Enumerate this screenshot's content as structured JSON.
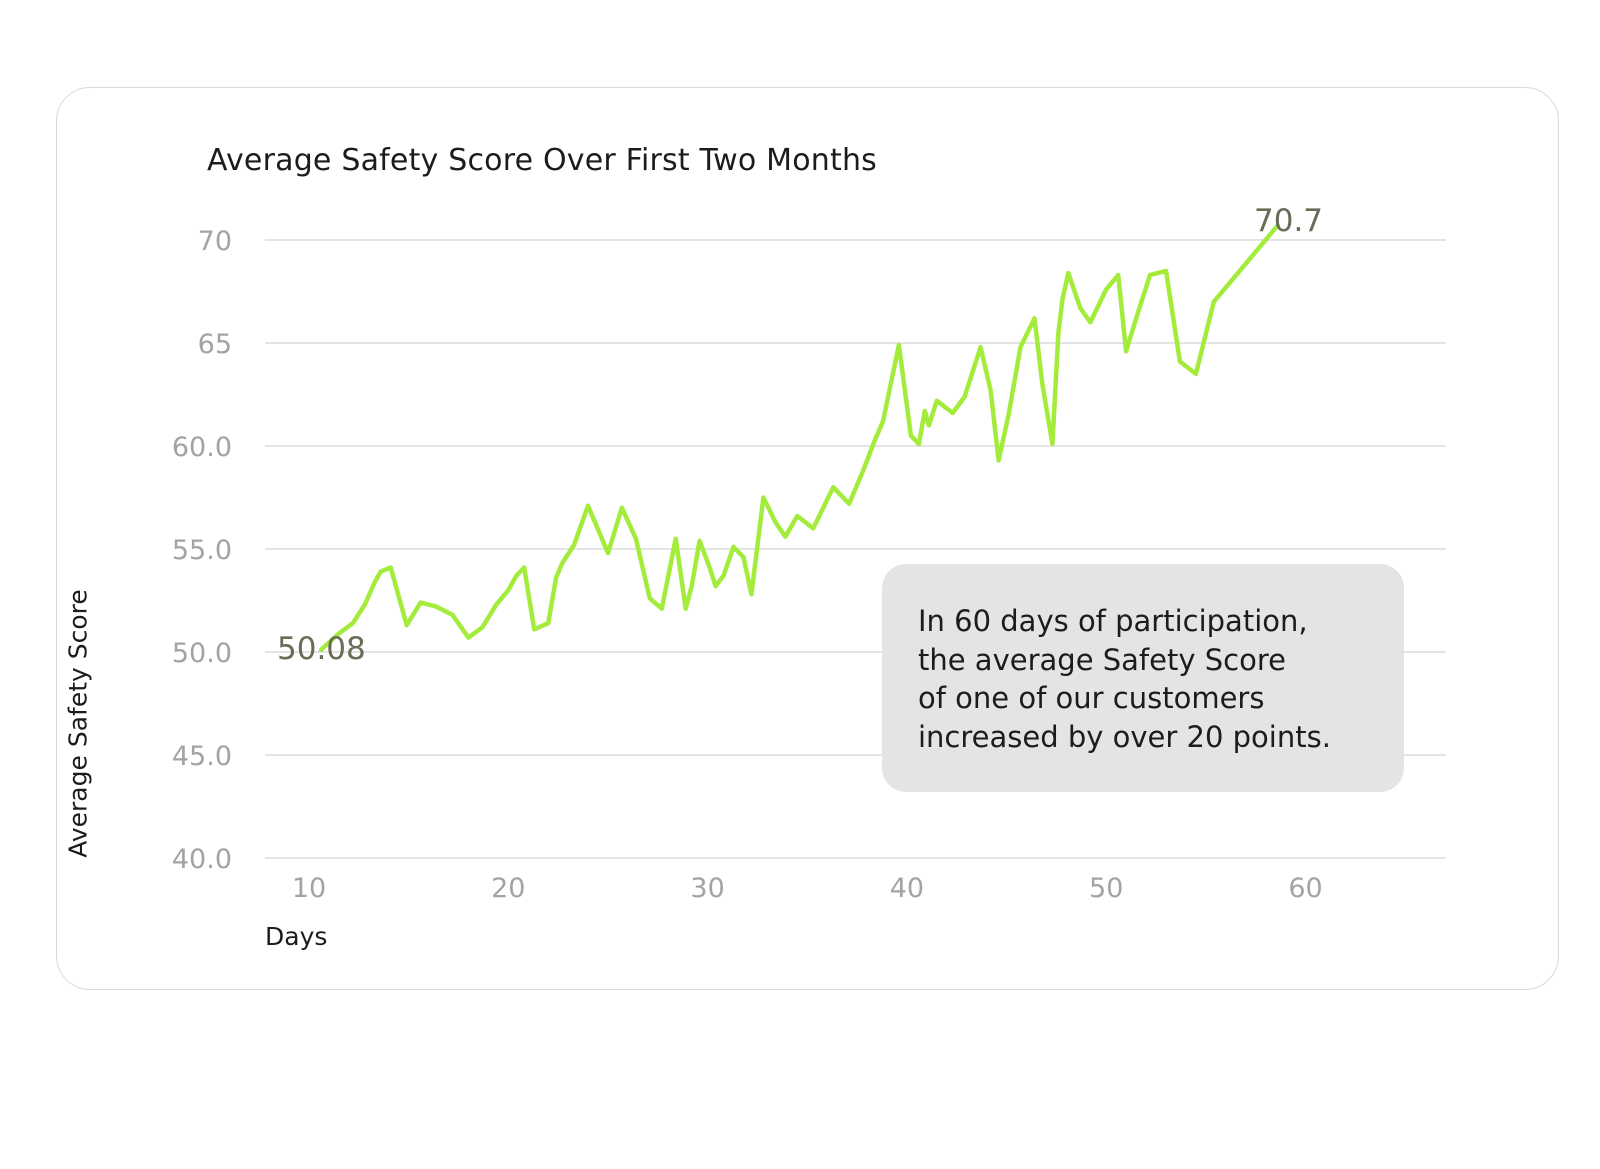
{
  "chart_data": {
    "type": "line",
    "title": "Average Safety Score Over First Two Months",
    "xlabel": "Days",
    "ylabel": "Average Safety Score",
    "xlim": [
      8,
      65
    ],
    "ylim": [
      40,
      70
    ],
    "grid": "horizontal",
    "x_ticks": [
      10,
      20,
      30,
      40,
      50,
      60
    ],
    "x_tick_labels": [
      "10",
      "20",
      "30",
      "40",
      "50",
      "60"
    ],
    "y_ticks": [
      40,
      45,
      50,
      55,
      60,
      65,
      70
    ],
    "y_tick_labels": [
      "40.0",
      "45.0",
      "50.0",
      "55.0",
      "60.0",
      "65",
      "70"
    ],
    "line_color": "#a3ec3b",
    "series": [
      {
        "x": [
          10.6,
          11.5,
          12.2,
          12.8,
          13.3,
          13.6,
          14.1,
          14.9,
          15.6,
          16.4,
          17.2,
          18.0,
          18.7,
          19.4,
          20.0,
          20.4,
          20.8,
          21.3,
          22.0,
          22.4,
          22.7,
          23.3,
          24.0,
          25.0,
          25.7,
          26.4,
          27.1,
          27.7,
          28.4,
          28.9,
          29.2,
          29.6,
          30.1,
          30.4,
          30.8,
          31.3,
          31.8,
          32.2,
          32.8,
          33.4,
          33.9,
          34.5,
          35.3,
          36.3,
          37.1,
          37.8,
          38.4,
          38.8,
          39.6,
          40.2,
          40.6,
          40.9,
          41.1,
          41.5,
          42.3,
          42.9,
          43.7,
          44.2,
          44.6,
          45.1,
          45.7,
          46.4,
          46.8,
          47.3,
          47.6,
          47.8,
          48.1,
          48.7,
          49.2,
          50.0,
          50.6,
          51.0,
          51.6,
          52.2,
          53.0,
          53.7,
          54.5,
          55.4,
          58.6
        ],
        "y": [
          50.1,
          50.9,
          51.4,
          52.3,
          53.4,
          53.9,
          54.1,
          51.3,
          52.4,
          52.2,
          51.8,
          50.7,
          51.2,
          52.3,
          53.0,
          53.7,
          54.1,
          51.1,
          51.4,
          53.6,
          54.3,
          55.2,
          57.1,
          54.8,
          57.0,
          55.5,
          52.6,
          52.1,
          55.5,
          52.1,
          53.2,
          55.4,
          54.1,
          53.2,
          53.7,
          55.1,
          54.6,
          52.8,
          57.5,
          56.3,
          55.6,
          56.6,
          56.0,
          58.0,
          57.2,
          58.8,
          60.3,
          61.2,
          64.9,
          60.5,
          60.1,
          61.7,
          61.0,
          62.2,
          61.6,
          62.4,
          64.8,
          62.7,
          59.3,
          61.5,
          64.8,
          66.2,
          63.0,
          60.1,
          65.5,
          67.1,
          68.4,
          66.7,
          66.0,
          67.6,
          68.3,
          64.6,
          66.5,
          68.3,
          68.5,
          64.1,
          63.5,
          67.0,
          70.7
        ]
      }
    ],
    "annotations": [
      "50.08",
      "70.7"
    ]
  },
  "callout": {
    "text": "In 60 days of participation,\nthe average Safety Score\nof one of our customers\nincreased by over 20 points."
  }
}
